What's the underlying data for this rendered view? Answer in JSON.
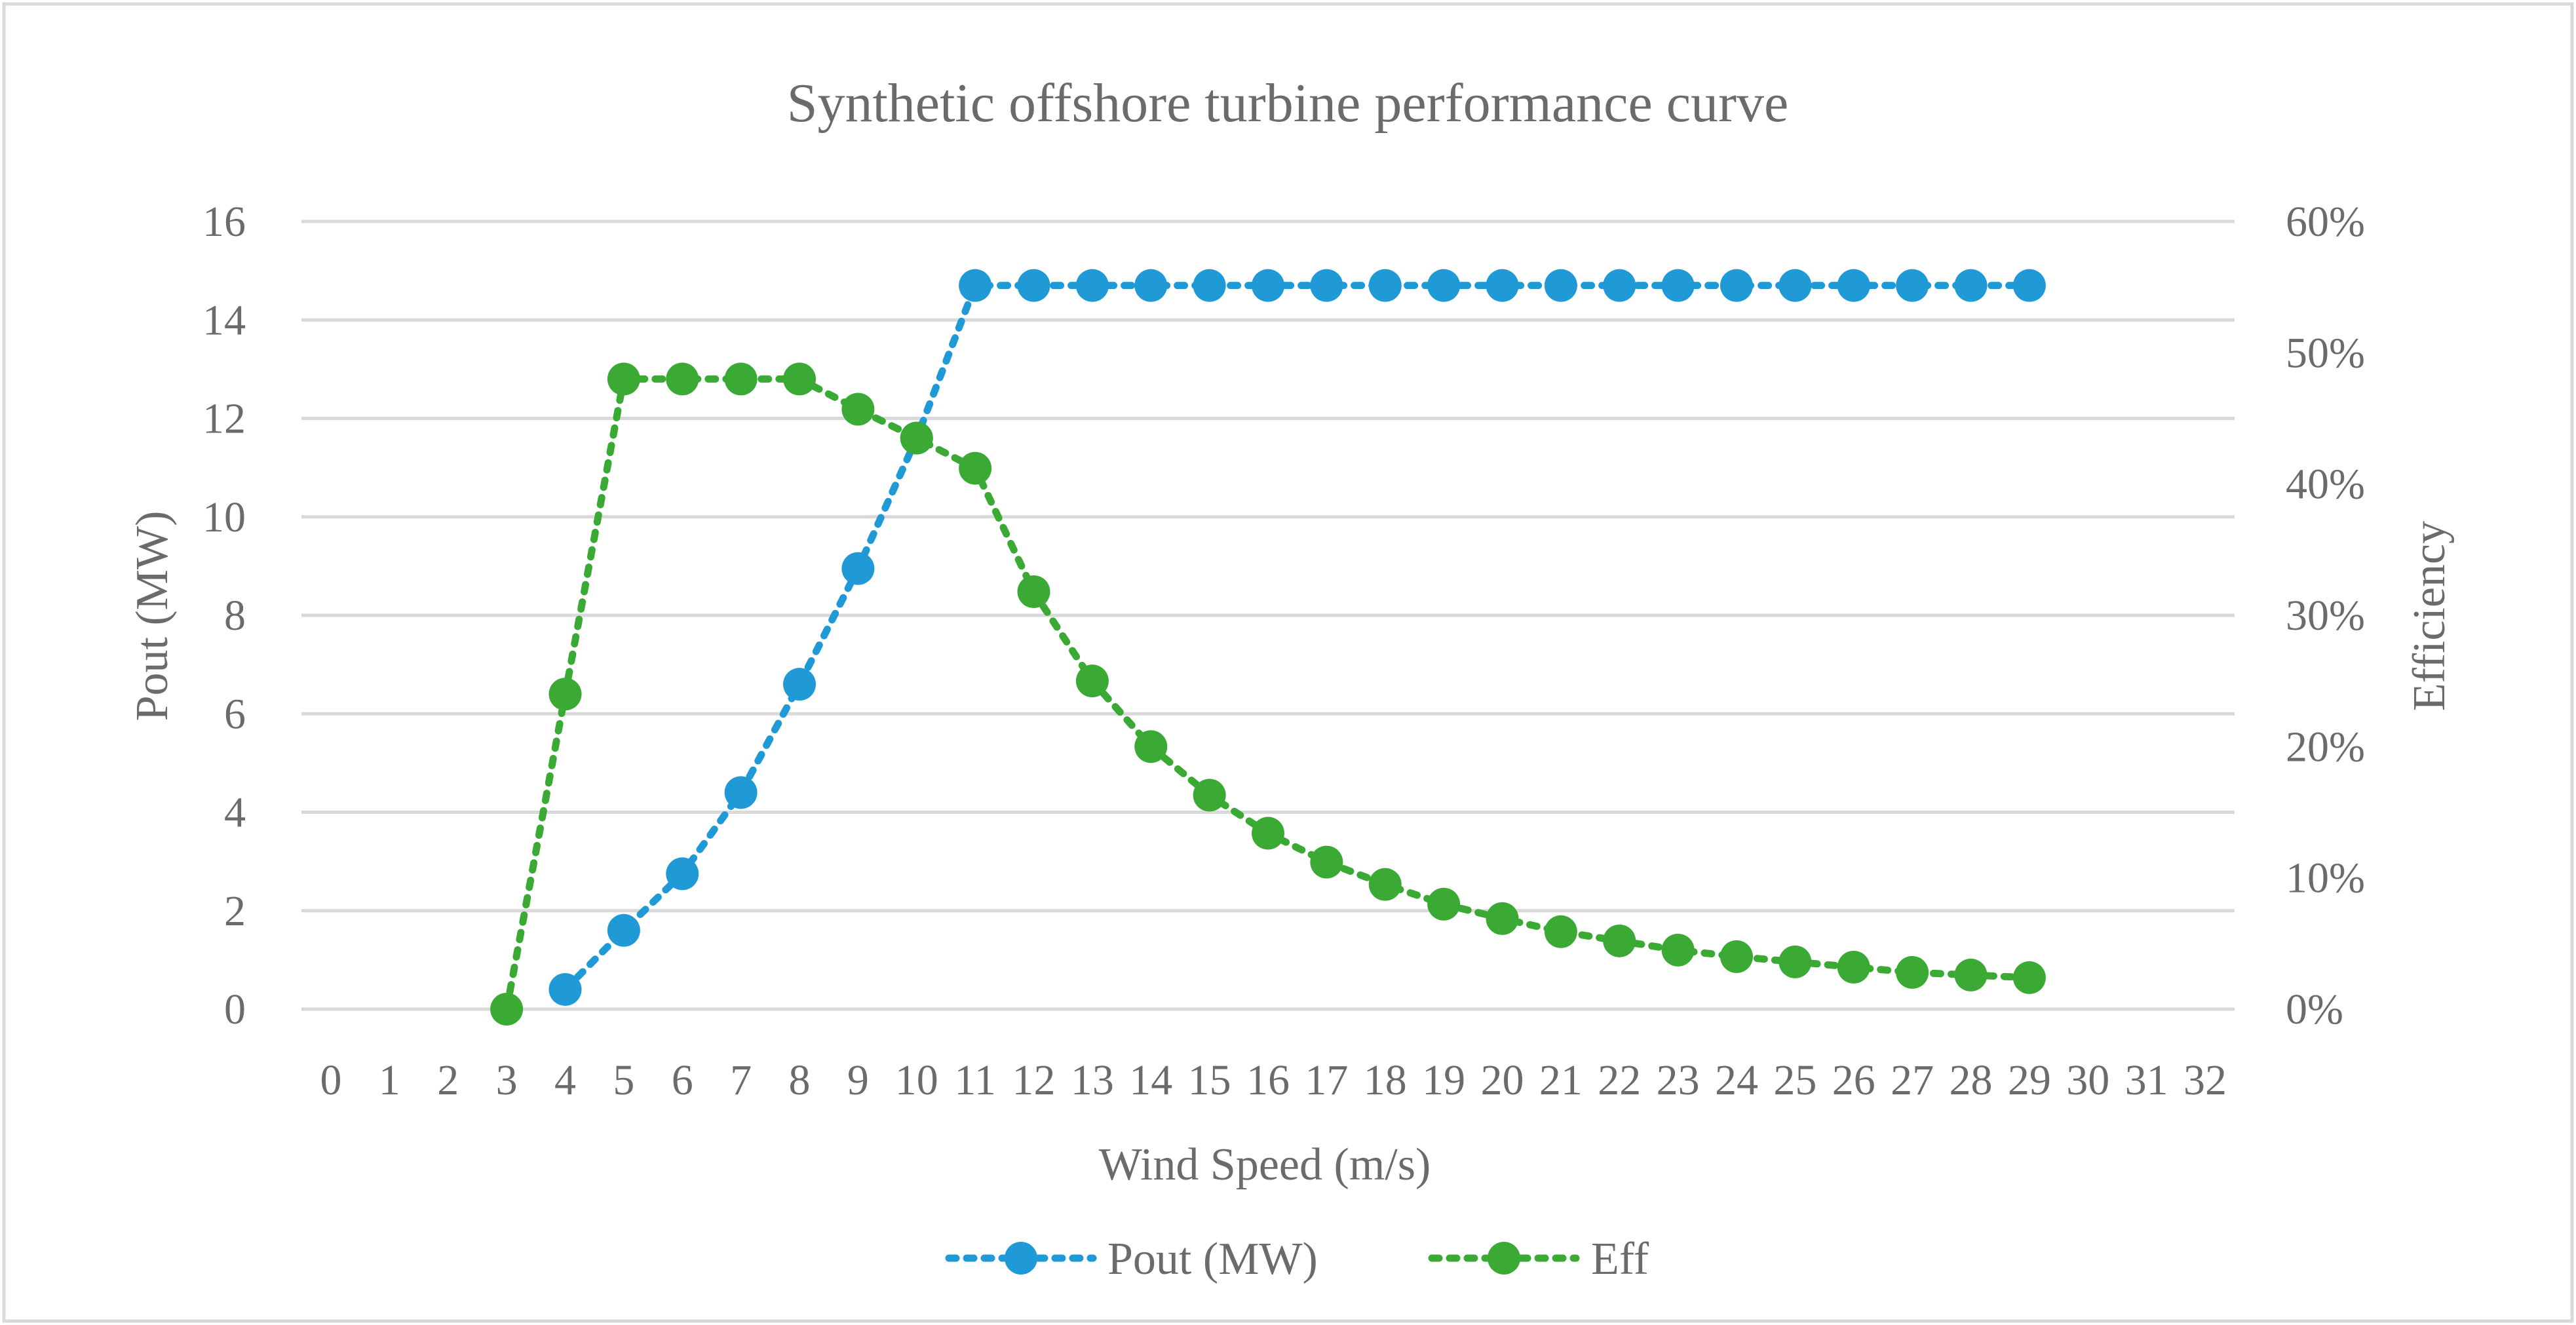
{
  "chart_data": {
    "type": "line",
    "title": "Synthetic offshore turbine performance curve",
    "xlabel": "Wind Speed (m/s)",
    "ylabel": "Pout (MW)",
    "y2label": "Efficiency",
    "xlim": [
      0,
      32
    ],
    "ylim": [
      0,
      16
    ],
    "y2lim": [
      0,
      0.6
    ],
    "x_ticks": [
      0,
      1,
      2,
      3,
      4,
      5,
      6,
      7,
      8,
      9,
      10,
      11,
      12,
      13,
      14,
      15,
      16,
      17,
      18,
      19,
      20,
      21,
      22,
      23,
      24,
      25,
      26,
      27,
      28,
      29,
      30,
      31,
      32
    ],
    "y_ticks": [
      0,
      2,
      4,
      6,
      8,
      10,
      12,
      14,
      16
    ],
    "y2_ticks": [
      "0%",
      "10%",
      "20%",
      "30%",
      "40%",
      "50%",
      "60%"
    ],
    "legend_position": "bottom",
    "series": [
      {
        "name": "Pout (MW)",
        "axis": "left",
        "color": "#1f9ad6",
        "x": [
          4,
          5,
          6,
          7,
          8,
          9,
          10,
          11,
          12,
          13,
          14,
          15,
          16,
          17,
          18,
          19,
          20,
          21,
          22,
          23,
          24,
          25,
          26,
          27,
          28,
          29
        ],
        "values": [
          0.4,
          1.6,
          2.75,
          4.4,
          6.6,
          8.95,
          11.6,
          14.7,
          14.7,
          14.7,
          14.7,
          14.7,
          14.7,
          14.7,
          14.7,
          14.7,
          14.7,
          14.7,
          14.7,
          14.7,
          14.7,
          14.7,
          14.7,
          14.7,
          14.7,
          14.7
        ]
      },
      {
        "name": "Eff",
        "axis": "right",
        "color": "#3aaa35",
        "x": [
          3,
          4,
          5,
          6,
          7,
          8,
          9,
          10,
          11,
          12,
          13,
          14,
          15,
          16,
          17,
          18,
          19,
          20,
          21,
          22,
          23,
          24,
          25,
          26,
          27,
          28,
          29
        ],
        "values": [
          0.0,
          0.24,
          0.48,
          0.48,
          0.48,
          0.48,
          0.457,
          0.435,
          0.412,
          0.318,
          0.25,
          0.2,
          0.163,
          0.134,
          0.112,
          0.095,
          0.08,
          0.069,
          0.059,
          0.052,
          0.045,
          0.04,
          0.036,
          0.032,
          0.028,
          0.026,
          0.024
        ]
      }
    ]
  }
}
